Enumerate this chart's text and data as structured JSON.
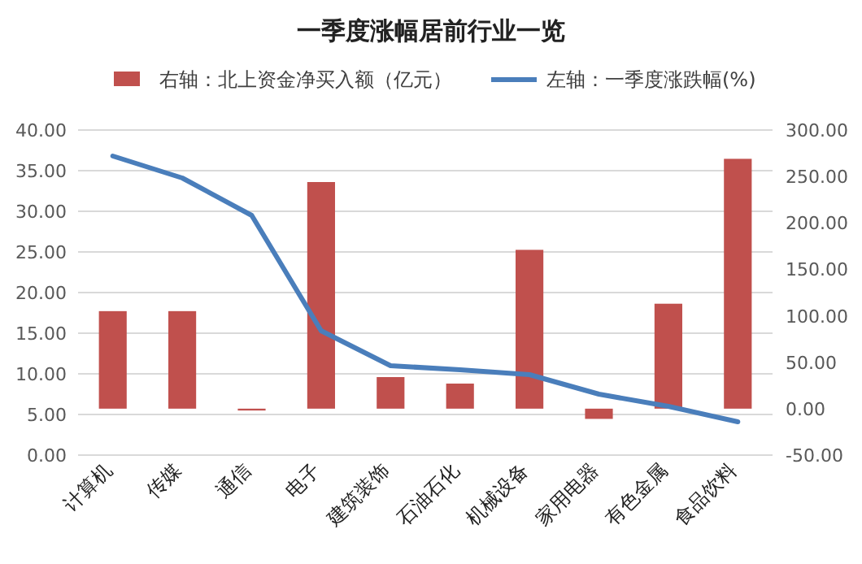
{
  "chart_data": {
    "type": "bar",
    "title": "一季度涨幅居前行业一览",
    "categories": [
      "计算机",
      "传媒",
      "通信",
      "电子",
      "建筑装饰",
      "石油石化",
      "机械设备",
      "家用电器",
      "有色金属",
      "食品饮料"
    ],
    "series": [
      {
        "name": "右轴：北上资金净买入额（亿元）",
        "axis": "y2",
        "color": "#c0504d",
        "values": [
          105,
          105,
          -2,
          244,
          34,
          27,
          171,
          -11,
          113,
          269
        ]
      },
      {
        "name": "左轴：一季度涨跌幅(%)",
        "type": "line",
        "color": "#4a7ebb",
        "values": [
          36.8,
          34.1,
          29.5,
          15.3,
          11.0,
          10.5,
          9.9,
          7.5,
          6.0,
          4.1
        ]
      }
    ],
    "ylim": [
      0,
      40
    ],
    "yticks": [
      {
        "value": 0,
        "label": "0.00"
      },
      {
        "value": 5,
        "label": "5.00"
      },
      {
        "value": 10,
        "label": "10.00"
      },
      {
        "value": 15,
        "label": "15.00"
      },
      {
        "value": 20,
        "label": "20.00"
      },
      {
        "value": 25,
        "label": "25.00"
      },
      {
        "value": 30,
        "label": "30.00"
      },
      {
        "value": 35,
        "label": "35.00"
      },
      {
        "value": 40,
        "label": "40.00"
      }
    ],
    "y2lim": [
      -50,
      300
    ],
    "y2ticks": [
      {
        "value": -50,
        "label": "-50.00"
      },
      {
        "value": 0,
        "label": "0.00"
      },
      {
        "value": 50,
        "label": "50.00"
      },
      {
        "value": 100,
        "label": "100.00"
      },
      {
        "value": 150,
        "label": "150.00"
      },
      {
        "value": 200,
        "label": "200.00"
      },
      {
        "value": 250,
        "label": "250.00"
      },
      {
        "value": 300,
        "label": "300.00"
      }
    ],
    "grid": "y",
    "legend": "top"
  }
}
